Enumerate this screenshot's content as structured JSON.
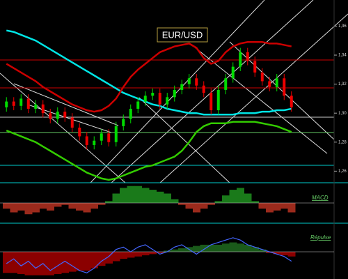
{
  "chart_data": [
    {
      "type": "candlestick",
      "title": "EUR/USD",
      "categories": [
        null,
        null,
        null,
        null,
        null,
        null,
        null,
        null,
        null,
        null,
        null,
        null,
        null,
        null,
        null,
        null,
        null,
        null,
        null,
        null,
        null,
        null,
        null,
        null,
        null,
        null,
        null,
        null,
        null,
        null,
        null,
        null,
        null,
        null,
        null,
        null,
        null,
        null,
        null,
        null
      ],
      "open": [
        1.304,
        1.308,
        1.305,
        1.31,
        1.303,
        1.306,
        1.3,
        1.296,
        1.301,
        1.297,
        1.29,
        1.284,
        1.278,
        1.281,
        1.286,
        1.28,
        1.291,
        1.296,
        1.303,
        1.308,
        1.312,
        1.314,
        1.306,
        1.311,
        1.316,
        1.32,
        1.324,
        1.319,
        1.314,
        1.302,
        1.316,
        1.324,
        1.332,
        1.342,
        1.336,
        1.328,
        1.322,
        1.318,
        1.324,
        1.312
      ],
      "high": [
        1.311,
        1.311,
        1.313,
        1.313,
        1.309,
        1.309,
        1.303,
        1.304,
        1.304,
        1.3,
        1.293,
        1.287,
        1.284,
        1.289,
        1.289,
        1.294,
        1.299,
        1.306,
        1.311,
        1.315,
        1.317,
        1.317,
        1.314,
        1.319,
        1.323,
        1.327,
        1.327,
        1.322,
        1.317,
        1.319,
        1.327,
        1.335,
        1.345,
        1.345,
        1.339,
        1.331,
        1.325,
        1.327,
        1.327,
        1.315
      ],
      "low": [
        1.301,
        1.302,
        1.302,
        1.3,
        1.3,
        1.297,
        1.293,
        1.293,
        1.294,
        1.287,
        1.281,
        1.275,
        1.275,
        1.278,
        1.277,
        1.277,
        1.288,
        1.293,
        1.3,
        1.305,
        1.309,
        1.303,
        1.303,
        1.308,
        1.313,
        1.317,
        1.316,
        1.311,
        1.299,
        1.299,
        1.313,
        1.321,
        1.329,
        1.333,
        1.325,
        1.319,
        1.315,
        1.315,
        1.309,
        1.301
      ],
      "close": [
        1.308,
        1.305,
        1.31,
        1.303,
        1.306,
        1.3,
        1.296,
        1.301,
        1.297,
        1.29,
        1.284,
        1.278,
        1.281,
        1.286,
        1.28,
        1.291,
        1.296,
        1.303,
        1.308,
        1.312,
        1.314,
        1.306,
        1.311,
        1.316,
        1.32,
        1.324,
        1.319,
        1.314,
        1.302,
        1.316,
        1.324,
        1.332,
        1.342,
        1.336,
        1.328,
        1.322,
        1.318,
        1.324,
        1.312,
        1.304
      ],
      "up_color": "#00dd00",
      "down_color": "#ee0000",
      "lines": [
        {
          "color": "#00e5e5",
          "values": [
            1.357,
            1.356,
            1.354,
            1.352,
            1.35,
            1.347,
            1.344,
            1.341,
            1.338,
            1.335,
            1.332,
            1.329,
            1.326,
            1.323,
            1.32,
            1.317,
            1.314,
            1.312,
            1.31,
            1.308,
            1.306,
            1.305,
            1.303,
            1.302,
            1.301,
            1.3,
            1.3,
            1.299,
            1.299,
            1.299,
            1.299,
            1.299,
            1.3,
            1.3,
            1.3,
            1.301,
            1.301,
            1.302,
            1.302,
            1.303
          ]
        },
        {
          "color": "#cc0000",
          "values": [
            1.334,
            1.331,
            1.328,
            1.325,
            1.322,
            1.318,
            1.315,
            1.312,
            1.309,
            1.306,
            1.304,
            1.302,
            1.301,
            1.302,
            1.305,
            1.31,
            1.318,
            1.325,
            1.33,
            1.334,
            1.338,
            1.342,
            1.344,
            1.346,
            1.347,
            1.348,
            1.345,
            1.338,
            1.334,
            1.336,
            1.342,
            1.346,
            1.348,
            1.349,
            1.349,
            1.349,
            1.348,
            1.348,
            1.347,
            1.346
          ]
        },
        {
          "color": "#33cc00",
          "values": [
            1.288,
            1.286,
            1.284,
            1.282,
            1.28,
            1.277,
            1.274,
            1.271,
            1.268,
            1.265,
            1.262,
            1.259,
            1.257,
            1.255,
            1.254,
            1.255,
            1.257,
            1.259,
            1.261,
            1.263,
            1.264,
            1.266,
            1.268,
            1.27,
            1.274,
            1.28,
            1.287,
            1.291,
            1.293,
            1.293,
            1.293,
            1.294,
            1.294,
            1.294,
            1.294,
            1.293,
            1.292,
            1.291,
            1.289,
            1.287
          ]
        }
      ],
      "ylim": [
        1.252,
        1.378
      ],
      "yticks": [
        {
          "value": 1.36,
          "label": "1,36"
        },
        {
          "value": 1.34,
          "label": "1,34"
        },
        {
          "value": 1.32,
          "label": "1,32"
        },
        {
          "value": 1.3,
          "label": "1,30"
        },
        {
          "value": 1.28,
          "label": "1,28"
        },
        {
          "value": 1.26,
          "label": "1,26"
        }
      ]
    },
    {
      "type": "histogram-area",
      "title": "MACD",
      "pos_color": "#1a7a1a",
      "neg_color": "#9b2a1c",
      "values": [
        -0.3,
        -0.5,
        -0.4,
        -0.6,
        -0.5,
        -0.3,
        -0.4,
        -0.2,
        -0.1,
        -0.3,
        -0.4,
        -0.5,
        -0.3,
        -0.1,
        0.1,
        0.5,
        0.8,
        0.9,
        0.9,
        0.8,
        0.7,
        0.6,
        0.5,
        0.2,
        -0.1,
        -0.3,
        -0.5,
        -0.3,
        -0.1,
        0.1,
        0.4,
        0.7,
        0.8,
        0.5,
        0.1,
        -0.3,
        -0.5,
        -0.4,
        -0.3,
        -0.5
      ],
      "ylim": [
        -1,
        1
      ]
    },
    {
      "type": "histogram-area",
      "title": "Répulse",
      "pos_color": "#1a5a1a",
      "neg_color": "#8b0000",
      "values": [
        -0.9,
        -0.9,
        -0.95,
        -1,
        -1,
        -1,
        -1,
        -0.95,
        -0.9,
        -0.85,
        -0.8,
        -0.8,
        -0.7,
        -0.6,
        -0.5,
        -0.4,
        -0.3,
        -0.25,
        -0.2,
        -0.15,
        -0.1,
        -0.05,
        0.05,
        0.1,
        0.15,
        0.2,
        0.25,
        0.3,
        0.3,
        0.3,
        0.35,
        0.4,
        0.35,
        0.3,
        0.2,
        0.1,
        -0.05,
        -0.1,
        -0.15,
        -0.2
      ],
      "line": {
        "color": "#4466ff",
        "values": [
          -0.5,
          -0.3,
          -0.6,
          -0.4,
          -0.7,
          -0.5,
          -0.8,
          -0.6,
          -0.4,
          -0.6,
          -0.8,
          -0.9,
          -0.7,
          -0.4,
          -0.2,
          0.1,
          0.2,
          0.0,
          0.2,
          0.3,
          0.1,
          -0.1,
          0.0,
          0.2,
          0.3,
          0.1,
          -0.1,
          0.1,
          0.3,
          0.4,
          0.5,
          0.6,
          0.5,
          0.3,
          0.2,
          0.1,
          0.0,
          -0.1,
          -0.2,
          -0.4
        ]
      },
      "ylim": [
        -1.1,
        1.1
      ]
    }
  ]
}
